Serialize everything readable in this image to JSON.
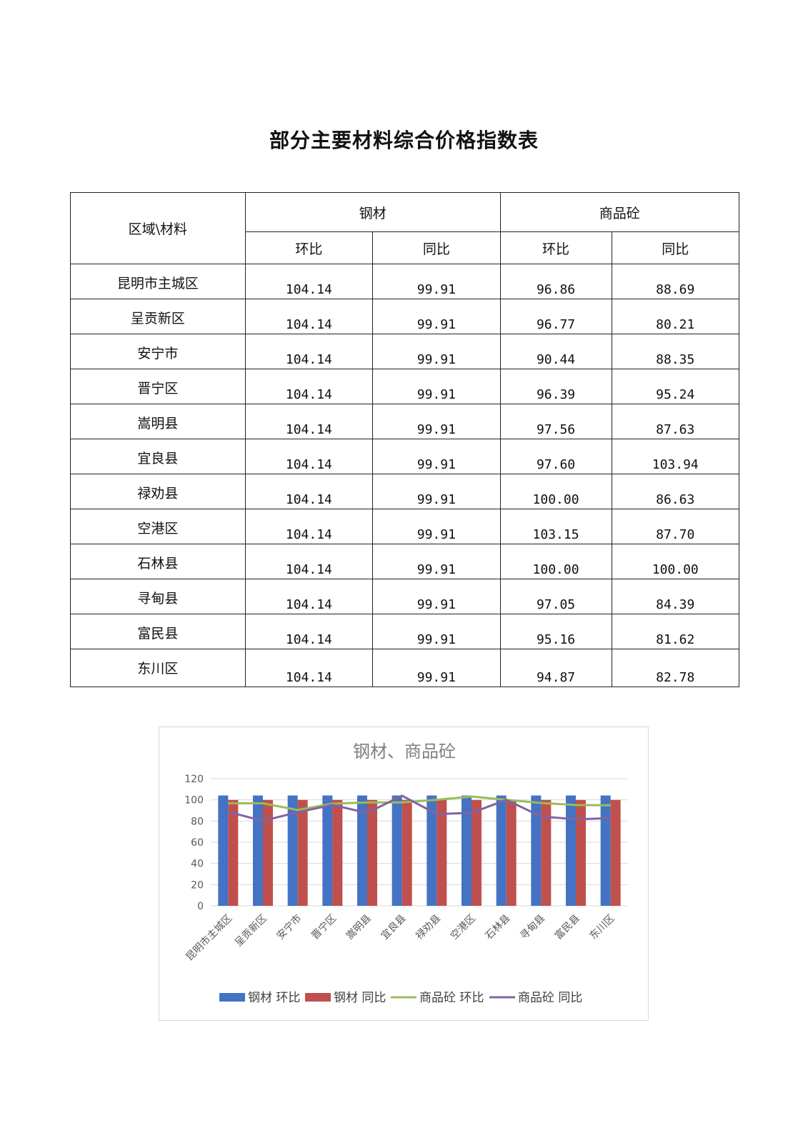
{
  "document": {
    "title": "部分主要材料综合价格指数表"
  },
  "table": {
    "corner_label": "区域\\材料",
    "groups": [
      {
        "name": "钢材",
        "subs": [
          "环比",
          "同比"
        ]
      },
      {
        "name": "商品砼",
        "subs": [
          "环比",
          "同比"
        ]
      }
    ],
    "rows": [
      {
        "region": "昆明市主城区",
        "values": [
          "104.14",
          "99.91",
          "96.86",
          "88.69"
        ]
      },
      {
        "region": "呈贡新区",
        "values": [
          "104.14",
          "99.91",
          "96.77",
          "80.21"
        ]
      },
      {
        "region": "安宁市",
        "values": [
          "104.14",
          "99.91",
          "90.44",
          "88.35"
        ]
      },
      {
        "region": "晋宁区",
        "values": [
          "104.14",
          "99.91",
          "96.39",
          "95.24"
        ]
      },
      {
        "region": "嵩明县",
        "values": [
          "104.14",
          "99.91",
          "97.56",
          "87.63"
        ]
      },
      {
        "region": "宜良县",
        "values": [
          "104.14",
          "99.91",
          "97.60",
          "103.94"
        ]
      },
      {
        "region": "禄劝县",
        "values": [
          "104.14",
          "99.91",
          "100.00",
          "86.63"
        ]
      },
      {
        "region": "空港区",
        "values": [
          "104.14",
          "99.91",
          "103.15",
          "87.70"
        ]
      },
      {
        "region": "石林县",
        "values": [
          "104.14",
          "99.91",
          "100.00",
          "100.00"
        ]
      },
      {
        "region": "寻甸县",
        "values": [
          "104.14",
          "99.91",
          "97.05",
          "84.39"
        ]
      },
      {
        "region": "富民县",
        "values": [
          "104.14",
          "99.91",
          "95.16",
          "81.62"
        ]
      },
      {
        "region": "东川区",
        "values": [
          "104.14",
          "99.91",
          "94.87",
          "82.78"
        ]
      }
    ]
  },
  "chart_data": {
    "type": "bar",
    "title": "钢材、商品砼",
    "categories": [
      "昆明市主城区",
      "呈贡新区",
      "安宁市",
      "晋宁区",
      "嵩明县",
      "宜良县",
      "禄劝县",
      "空港区",
      "石林县",
      "寻甸县",
      "富民县",
      "东川区"
    ],
    "ylim": [
      0,
      120
    ],
    "yticks": [
      0,
      20,
      40,
      60,
      80,
      100,
      120
    ],
    "grid": true,
    "legend": "bottom",
    "series": [
      {
        "name": "钢材 环比",
        "kind": "bar",
        "color": "#4472C4",
        "values": [
          104.14,
          104.14,
          104.14,
          104.14,
          104.14,
          104.14,
          104.14,
          104.14,
          104.14,
          104.14,
          104.14,
          104.14
        ]
      },
      {
        "name": "钢材 同比",
        "kind": "bar",
        "color": "#C0504D",
        "values": [
          99.91,
          99.91,
          99.91,
          99.91,
          99.91,
          99.91,
          99.91,
          99.91,
          99.91,
          99.91,
          99.91,
          99.91
        ]
      },
      {
        "name": "商品砼 环比",
        "kind": "line",
        "color": "#9BBB59",
        "values": [
          96.86,
          96.77,
          90.44,
          96.39,
          97.56,
          97.6,
          100.0,
          103.15,
          100.0,
          97.05,
          95.16,
          94.87
        ]
      },
      {
        "name": "商品砼 同比",
        "kind": "line",
        "color": "#8064A2",
        "values": [
          88.69,
          80.21,
          88.35,
          95.24,
          87.63,
          103.94,
          86.63,
          87.7,
          100.0,
          84.39,
          81.62,
          82.78
        ]
      }
    ]
  }
}
